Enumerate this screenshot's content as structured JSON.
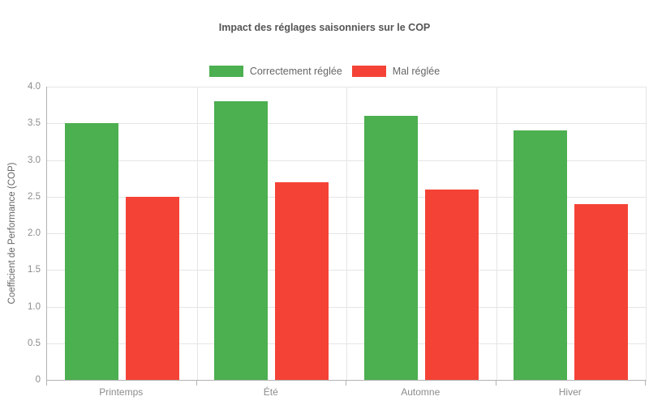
{
  "title": "Impact des réglages saisonniers sur le COP",
  "chart_data": {
    "type": "bar",
    "title": "Impact des réglages saisonniers sur le COP",
    "categories": [
      "Printemps",
      "Été",
      "Automne",
      "Hiver"
    ],
    "series": [
      {
        "name": "Correctement réglée",
        "color": "#4caf50",
        "values": [
          3.5,
          3.8,
          3.6,
          3.4
        ]
      },
      {
        "name": "Mal réglée",
        "color": "#f44336",
        "values": [
          2.5,
          2.7,
          2.6,
          2.4
        ]
      }
    ],
    "xlabel": "",
    "ylabel": "Coefficient de Performance (COP)",
    "ylim": [
      0,
      4.0
    ],
    "ytick_labels": [
      "0",
      "0.5",
      "1.0",
      "1.5",
      "2.0",
      "2.5",
      "3.0",
      "3.5",
      "4.0"
    ],
    "grid": true,
    "legend_position": "top"
  },
  "colors": {
    "background": "#ffffff",
    "grid": "#e5e5e5",
    "axis": "#b3b3b3",
    "tick_text": "#8c8c8c",
    "title_text": "#555555",
    "legend_text": "#666666",
    "series_green": "#4caf50",
    "series_red": "#f44336"
  }
}
